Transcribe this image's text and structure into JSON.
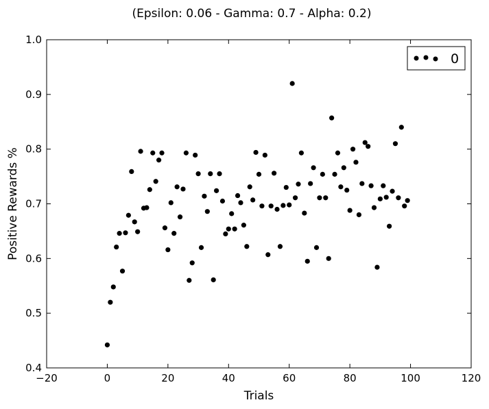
{
  "chart_data": {
    "type": "scatter",
    "title": "(Epsilon: 0.06 - Gamma: 0.7 - Alpha: 0.2)",
    "xlabel": "Trials",
    "ylabel": "Positive Rewards %",
    "xlim": [
      -20,
      120
    ],
    "ylim": [
      0.4,
      1.0
    ],
    "xticks": [
      -20,
      0,
      20,
      40,
      60,
      80,
      100,
      120
    ],
    "yticks": [
      0.4,
      0.5,
      0.6,
      0.7,
      0.8,
      0.9,
      1.0
    ],
    "xtick_labels": [
      "−20",
      "0",
      "20",
      "40",
      "60",
      "80",
      "100",
      "120"
    ],
    "ytick_labels": [
      "0.4",
      "0.5",
      "0.6",
      "0.7",
      "0.8",
      "0.9",
      "1.0"
    ],
    "grid": false,
    "legend_position": "top-right",
    "series": [
      {
        "name": "0",
        "color": "#000000",
        "x": [
          0,
          1,
          2,
          3,
          4,
          5,
          6,
          7,
          8,
          9,
          10,
          11,
          12,
          13,
          14,
          15,
          16,
          17,
          18,
          19,
          20,
          21,
          22,
          23,
          24,
          25,
          26,
          27,
          28,
          29,
          30,
          31,
          32,
          33,
          34,
          35,
          36,
          37,
          38,
          39,
          40,
          41,
          42,
          43,
          44,
          45,
          46,
          47,
          48,
          49,
          50,
          51,
          52,
          53,
          54,
          55,
          56,
          57,
          58,
          59,
          60,
          61,
          62,
          63,
          64,
          65,
          66,
          67,
          68,
          69,
          70,
          71,
          72,
          73,
          74,
          75,
          76,
          77,
          78,
          79,
          80,
          81,
          82,
          83,
          84,
          85,
          86,
          87,
          88,
          89,
          90,
          91,
          92,
          93,
          94,
          95,
          96,
          97,
          98,
          99
        ],
        "y": [
          0.442,
          0.52,
          0.548,
          0.621,
          0.646,
          0.577,
          0.647,
          0.679,
          0.759,
          0.667,
          0.649,
          0.796,
          0.692,
          0.693,
          0.726,
          0.793,
          0.741,
          0.78,
          0.793,
          0.656,
          0.616,
          0.702,
          0.646,
          0.731,
          0.676,
          0.727,
          0.793,
          0.56,
          0.592,
          0.789,
          0.755,
          0.62,
          0.714,
          0.686,
          0.755,
          0.561,
          0.724,
          0.755,
          0.705,
          0.645,
          0.654,
          0.682,
          0.654,
          0.715,
          0.702,
          0.661,
          0.622,
          0.731,
          0.707,
          0.794,
          0.754,
          0.696,
          0.789,
          0.607,
          0.696,
          0.756,
          0.69,
          0.622,
          0.697,
          0.73,
          0.698,
          0.92,
          0.711,
          0.736,
          0.793,
          0.683,
          0.595,
          0.737,
          0.766,
          0.62,
          0.711,
          0.754,
          0.711,
          0.6,
          0.857,
          0.754,
          0.793,
          0.731,
          0.766,
          0.725,
          0.688,
          0.8,
          0.776,
          0.68,
          0.737,
          0.812,
          0.805,
          0.733,
          0.693,
          0.584,
          0.709,
          0.733,
          0.712,
          0.659,
          0.723,
          0.81,
          0.711,
          0.84,
          0.696,
          0.706
        ]
      }
    ]
  }
}
